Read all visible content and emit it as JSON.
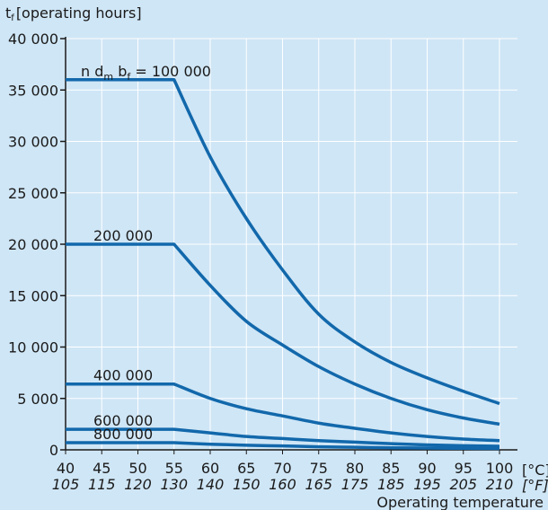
{
  "chart_data": {
    "type": "line",
    "ylabel": "t",
    "ylabel_sub": "f",
    "ylabel_unit": "[operating hours]",
    "xlabel": "Operating temperature",
    "x_unit_c": "[°C]",
    "x_unit_f": "[°F]",
    "xlim": [
      40,
      100
    ],
    "ylim": [
      0,
      40000
    ],
    "x_ticks": [
      40,
      45,
      50,
      55,
      60,
      65,
      70,
      75,
      80,
      85,
      90,
      95,
      100
    ],
    "x_tick_labels_c": [
      "40",
      "45",
      "50",
      "55",
      "60",
      "65",
      "70",
      "75",
      "80",
      "85",
      "90",
      "95",
      "100"
    ],
    "x_tick_labels_f": [
      "105",
      "115",
      "120",
      "130",
      "140",
      "150",
      "160",
      "165",
      "175",
      "185",
      "195",
      "205",
      "210"
    ],
    "y_ticks": [
      0,
      5000,
      10000,
      15000,
      20000,
      25000,
      30000,
      35000,
      40000
    ],
    "y_tick_labels": [
      "0",
      "5 000",
      "10 000",
      "15 000",
      "20 000",
      "25 000",
      "30 000",
      "35 000",
      "40 000"
    ],
    "grid": true,
    "line_color": "#1268ab",
    "x": [
      40,
      55,
      60,
      65,
      70,
      75,
      80,
      85,
      90,
      95,
      100
    ],
    "series": [
      {
        "name": "n d_m b_f = 100 000",
        "label_parts": [
          "n d",
          "m",
          " b",
          "f",
          " = 100 000"
        ],
        "values": [
          36000,
          36000,
          28500,
          22500,
          17500,
          13200,
          10500,
          8500,
          7000,
          5700,
          4500
        ]
      },
      {
        "name": "200 000",
        "values": [
          20000,
          20000,
          16000,
          12500,
          10200,
          8100,
          6400,
          5000,
          3900,
          3100,
          2500
        ]
      },
      {
        "name": "400 000",
        "values": [
          6400,
          6400,
          5000,
          4000,
          3300,
          2600,
          2100,
          1650,
          1300,
          1050,
          900
        ]
      },
      {
        "name": "600 000",
        "values": [
          2000,
          2000,
          1650,
          1300,
          1100,
          900,
          750,
          600,
          480,
          400,
          350
        ]
      },
      {
        "name": "800 000",
        "values": [
          700,
          700,
          550,
          450,
          380,
          300,
          250,
          200,
          170,
          150,
          130
        ]
      }
    ]
  }
}
